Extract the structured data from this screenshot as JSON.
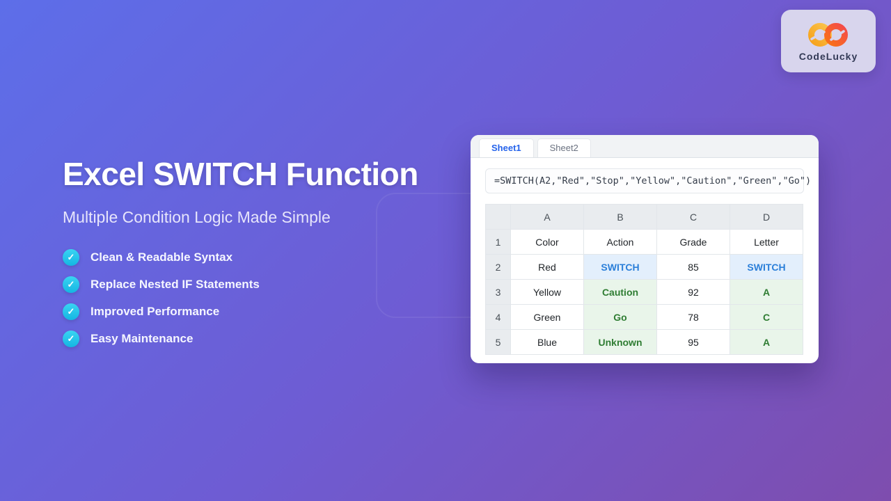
{
  "brand": {
    "name": "CodeLucky"
  },
  "hero": {
    "title": "Excel SWITCH Function",
    "subtitle": "Multiple Condition Logic Made Simple",
    "check_glyph": "✓",
    "features": [
      "Clean & Readable Syntax",
      "Replace Nested IF Statements",
      "Improved Performance",
      "Easy Maintenance"
    ]
  },
  "spreadsheet": {
    "tabs": [
      {
        "label": "Sheet1",
        "active": true
      },
      {
        "label": "Sheet2",
        "active": false
      }
    ],
    "formula": "=SWITCH(A2,\"Red\",\"Stop\",\"Yellow\",\"Caution\",\"Green\",\"Go\")",
    "columns": [
      "A",
      "B",
      "C",
      "D"
    ],
    "rows": [
      {
        "num": "1",
        "cells": [
          {
            "text": "Color",
            "style": ""
          },
          {
            "text": "Action",
            "style": ""
          },
          {
            "text": "Grade",
            "style": ""
          },
          {
            "text": "Letter",
            "style": ""
          }
        ]
      },
      {
        "num": "2",
        "cells": [
          {
            "text": "Red",
            "style": ""
          },
          {
            "text": "SWITCH",
            "style": "blue"
          },
          {
            "text": "85",
            "style": ""
          },
          {
            "text": "SWITCH",
            "style": "blue"
          }
        ]
      },
      {
        "num": "3",
        "cells": [
          {
            "text": "Yellow",
            "style": ""
          },
          {
            "text": "Caution",
            "style": "green"
          },
          {
            "text": "92",
            "style": ""
          },
          {
            "text": "A",
            "style": "green"
          }
        ]
      },
      {
        "num": "4",
        "cells": [
          {
            "text": "Green",
            "style": ""
          },
          {
            "text": "Go",
            "style": "green"
          },
          {
            "text": "78",
            "style": ""
          },
          {
            "text": "C",
            "style": "green"
          }
        ]
      },
      {
        "num": "5",
        "cells": [
          {
            "text": "Blue",
            "style": ""
          },
          {
            "text": "Unknown",
            "style": "green"
          },
          {
            "text": "95",
            "style": ""
          },
          {
            "text": "A",
            "style": "green"
          }
        ]
      }
    ]
  },
  "colors": {
    "background_gradient_start": "#5d6ee9",
    "background_gradient_end": "#7e4dae",
    "accent_blue": "#2b7fd9",
    "accent_green": "#2f7d33",
    "check_cyan": "#14b6e2",
    "active_tab_blue": "#2563eb",
    "badge_lavender": "#d8d5ed"
  }
}
